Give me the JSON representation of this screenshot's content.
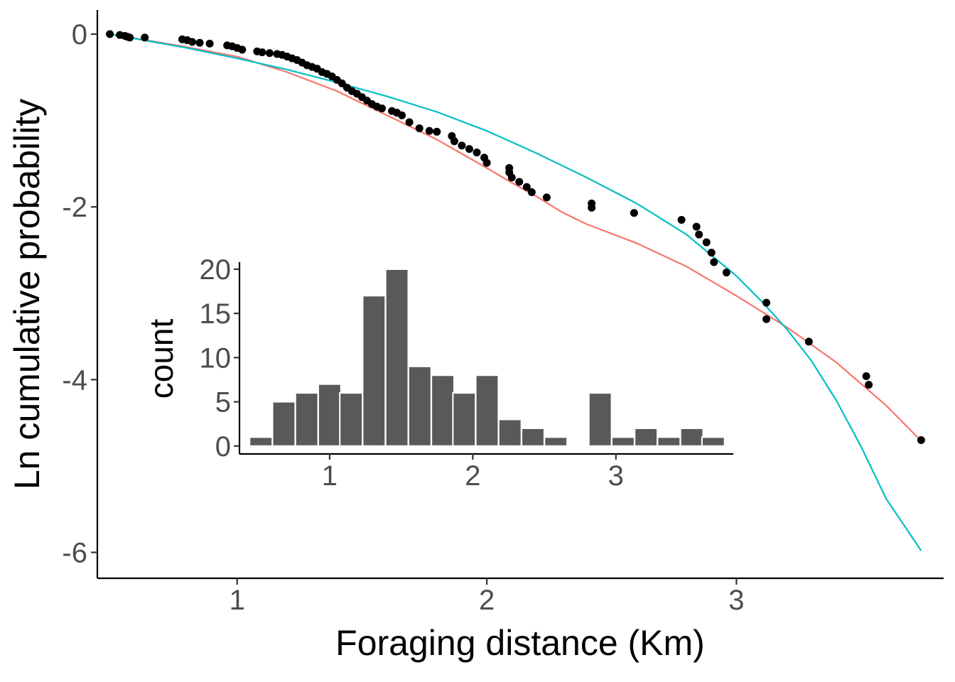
{
  "chart_data": [
    {
      "type": "scatter",
      "xlabel": "Foraging distance (Km)",
      "ylabel": "Ln cumulative probability",
      "xlim": [
        0.44,
        3.83
      ],
      "ylim": [
        -6.3,
        0.28
      ],
      "x_ticks": [
        1,
        2,
        3
      ],
      "x_tick_labels": [
        "1",
        "2",
        "3"
      ],
      "y_ticks": [
        0,
        -2,
        -4,
        -6
      ],
      "y_tick_labels": [
        "0",
        "-2",
        "-4",
        "-6"
      ],
      "grid": false,
      "legend": "none",
      "colors": {
        "points": "#000000",
        "fit_red": "#F8766D",
        "fit_cyan": "#00BFC4",
        "axis": "#000000"
      },
      "points": [
        [
          0.49,
          0.0
        ],
        [
          0.53,
          -0.01
        ],
        [
          0.55,
          -0.02
        ],
        [
          0.56,
          -0.03
        ],
        [
          0.57,
          -0.04
        ],
        [
          0.63,
          -0.04
        ],
        [
          0.78,
          -0.06
        ],
        [
          0.8,
          -0.07
        ],
        [
          0.82,
          -0.09
        ],
        [
          0.85,
          -0.1
        ],
        [
          0.89,
          -0.11
        ],
        [
          0.96,
          -0.13
        ],
        [
          0.98,
          -0.14
        ],
        [
          1.0,
          -0.16
        ],
        [
          1.02,
          -0.18
        ],
        [
          1.08,
          -0.2
        ],
        [
          1.1,
          -0.21
        ],
        [
          1.13,
          -0.22
        ],
        [
          1.16,
          -0.23
        ],
        [
          1.18,
          -0.24
        ],
        [
          1.2,
          -0.26
        ],
        [
          1.22,
          -0.28
        ],
        [
          1.24,
          -0.3
        ],
        [
          1.26,
          -0.33
        ],
        [
          1.28,
          -0.36
        ],
        [
          1.3,
          -0.38
        ],
        [
          1.32,
          -0.4
        ],
        [
          1.34,
          -0.44
        ],
        [
          1.36,
          -0.46
        ],
        [
          1.38,
          -0.49
        ],
        [
          1.4,
          -0.53
        ],
        [
          1.42,
          -0.57
        ],
        [
          1.44,
          -0.62
        ],
        [
          1.46,
          -0.66
        ],
        [
          1.48,
          -0.69
        ],
        [
          1.5,
          -0.73
        ],
        [
          1.52,
          -0.77
        ],
        [
          1.54,
          -0.81
        ],
        [
          1.56,
          -0.84
        ],
        [
          1.58,
          -0.86
        ],
        [
          1.62,
          -0.89
        ],
        [
          1.64,
          -0.91
        ],
        [
          1.66,
          -0.94
        ],
        [
          1.69,
          -1.02
        ],
        [
          1.73,
          -1.09
        ],
        [
          1.77,
          -1.12
        ],
        [
          1.8,
          -1.13
        ],
        [
          1.86,
          -1.18
        ],
        [
          1.87,
          -1.24
        ],
        [
          1.9,
          -1.29
        ],
        [
          1.93,
          -1.33
        ],
        [
          1.96,
          -1.37
        ],
        [
          1.99,
          -1.43
        ],
        [
          2.0,
          -1.49
        ],
        [
          2.09,
          -1.55
        ],
        [
          2.09,
          -1.6
        ],
        [
          2.1,
          -1.66
        ],
        [
          2.13,
          -1.71
        ],
        [
          2.16,
          -1.77
        ],
        [
          2.18,
          -1.83
        ],
        [
          2.24,
          -1.89
        ],
        [
          2.42,
          -1.96
        ],
        [
          2.42,
          -2.01
        ],
        [
          2.59,
          -2.07
        ],
        [
          2.78,
          -2.15
        ],
        [
          2.84,
          -2.23
        ],
        [
          2.85,
          -2.32
        ],
        [
          2.88,
          -2.41
        ],
        [
          2.9,
          -2.53
        ],
        [
          2.91,
          -2.64
        ],
        [
          2.96,
          -2.76
        ],
        [
          3.12,
          -3.11
        ],
        [
          3.12,
          -3.3
        ],
        [
          3.29,
          -3.56
        ],
        [
          3.52,
          -3.96
        ],
        [
          3.53,
          -4.06
        ],
        [
          3.74,
          -4.7
        ]
      ],
      "series": [
        {
          "x": [
            0.49,
            0.8,
            1.0,
            1.2,
            1.4,
            1.6,
            1.8,
            2.0,
            2.1,
            2.2,
            2.3,
            2.4,
            2.6,
            2.8,
            3.0,
            3.2,
            3.4,
            3.6,
            3.74
          ],
          "y": [
            0.0,
            -0.15,
            -0.26,
            -0.44,
            -0.66,
            -0.94,
            -1.22,
            -1.55,
            -1.72,
            -1.88,
            -2.06,
            -2.2,
            -2.42,
            -2.69,
            -3.03,
            -3.39,
            -3.8,
            -4.3,
            -4.71
          ]
        },
        {
          "x": [
            0.49,
            0.8,
            1.0,
            1.2,
            1.4,
            1.6,
            1.8,
            2.0,
            2.2,
            2.4,
            2.6,
            2.8,
            3.0,
            3.1,
            3.2,
            3.3,
            3.4,
            3.5,
            3.6,
            3.74
          ],
          "y": [
            0.0,
            -0.16,
            -0.28,
            -0.41,
            -0.56,
            -0.72,
            -0.9,
            -1.12,
            -1.38,
            -1.66,
            -1.96,
            -2.32,
            -2.8,
            -3.09,
            -3.41,
            -3.78,
            -4.24,
            -4.78,
            -5.38,
            -5.98
          ]
        }
      ]
    },
    {
      "type": "bar",
      "xlabel": "",
      "ylabel": "count",
      "xlim": [
        0.37,
        3.82
      ],
      "ylim": [
        -0.9,
        20.8
      ],
      "x_ticks": [
        1,
        2,
        3
      ],
      "x_tick_labels": [
        "1",
        "2",
        "3"
      ],
      "y_ticks": [
        0,
        5,
        10,
        15,
        20
      ],
      "y_tick_labels": [
        "0",
        "5",
        "10",
        "15",
        "20"
      ],
      "bin_width": 0.158,
      "grid": false,
      "colors": {
        "bars": "#595959",
        "axis": "#000000"
      },
      "bin_centers": [
        0.52,
        0.68,
        0.84,
        1.0,
        1.15,
        1.31,
        1.47,
        1.63,
        1.79,
        1.94,
        2.1,
        2.26,
        2.42,
        2.58,
        2.73,
        2.89,
        3.05,
        3.21,
        3.37,
        3.53,
        3.68
      ],
      "values": [
        1,
        5,
        6,
        7,
        6,
        17,
        20,
        9,
        8,
        6,
        8,
        3,
        2,
        1,
        0,
        6,
        1,
        2,
        1,
        2,
        1
      ]
    }
  ]
}
